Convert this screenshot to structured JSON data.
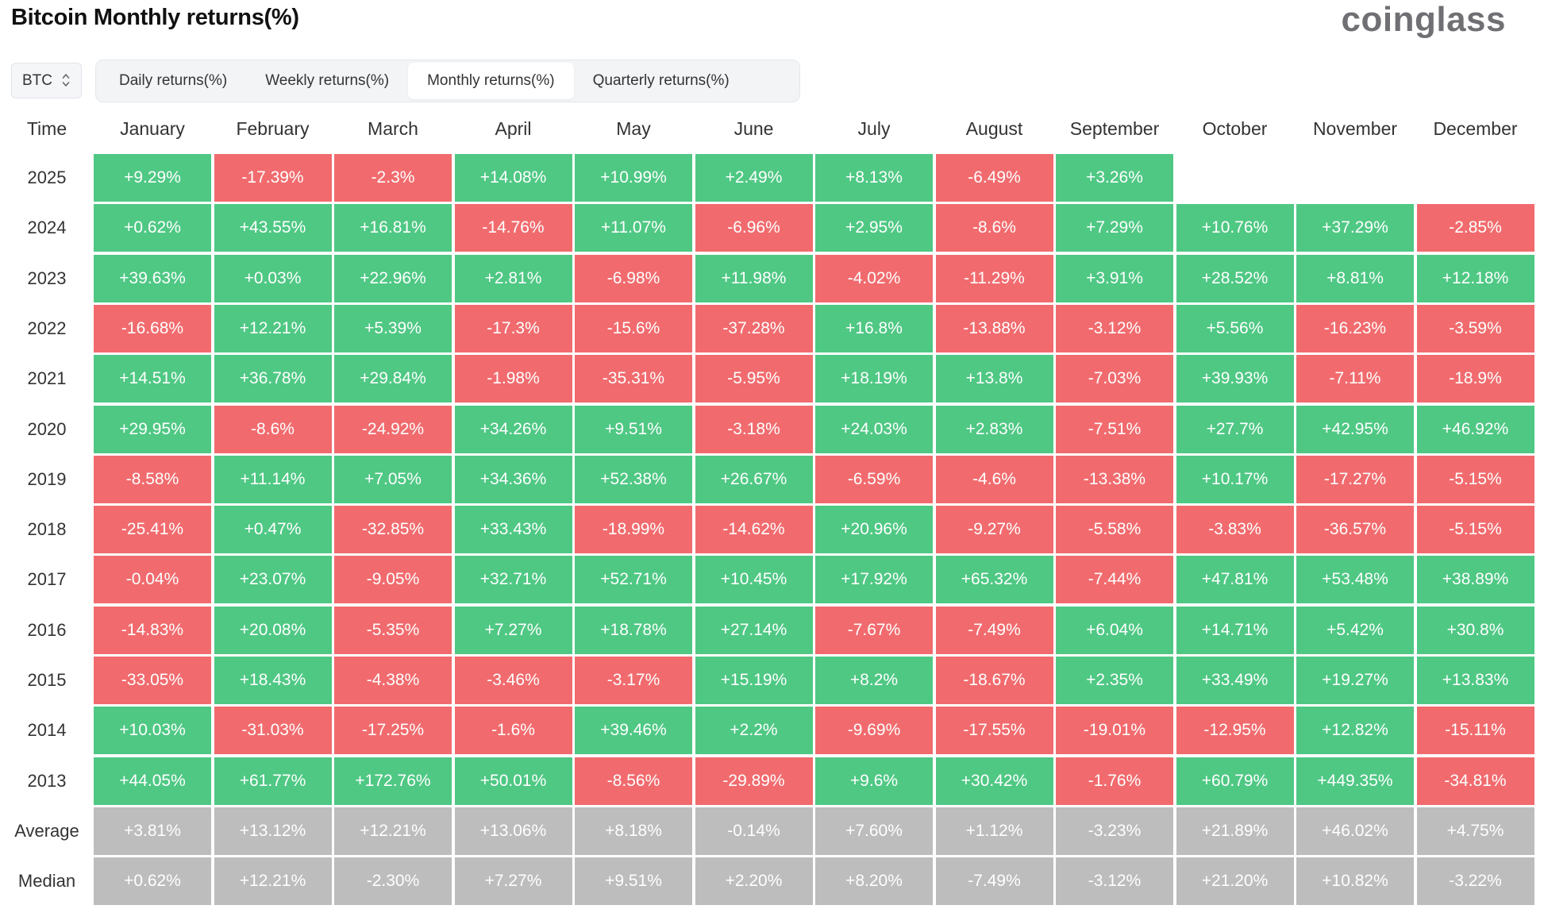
{
  "header": {
    "title": "Bitcoin Monthly returns(%)",
    "brand": "coinglass"
  },
  "controls": {
    "coin": "BTC",
    "tabs": [
      {
        "label": "Daily returns(%)"
      },
      {
        "label": "Weekly returns(%)"
      },
      {
        "label": "Monthly returns(%)"
      },
      {
        "label": "Quarterly returns(%)"
      }
    ],
    "active_tab": "Monthly returns(%)"
  },
  "colors": {
    "positive": "#4fc884",
    "negative": "#f16b6e",
    "summary": "#bdbdbd",
    "grid_line": "#ffffff"
  },
  "chart_data": {
    "type": "table",
    "title": "Bitcoin Monthly returns(%)",
    "row_header_label": "Time",
    "columns": [
      "January",
      "February",
      "March",
      "April",
      "May",
      "June",
      "July",
      "August",
      "September",
      "October",
      "November",
      "December"
    ],
    "rows": [
      {
        "label": "2025",
        "values": [
          "+9.29%",
          "-17.39%",
          "-2.3%",
          "+14.08%",
          "+10.99%",
          "+2.49%",
          "+8.13%",
          "-6.49%",
          "+3.26%",
          null,
          null,
          null
        ]
      },
      {
        "label": "2024",
        "values": [
          "+0.62%",
          "+43.55%",
          "+16.81%",
          "-14.76%",
          "+11.07%",
          "-6.96%",
          "+2.95%",
          "-8.6%",
          "+7.29%",
          "+10.76%",
          "+37.29%",
          "-2.85%"
        ]
      },
      {
        "label": "2023",
        "values": [
          "+39.63%",
          "+0.03%",
          "+22.96%",
          "+2.81%",
          "-6.98%",
          "+11.98%",
          "-4.02%",
          "-11.29%",
          "+3.91%",
          "+28.52%",
          "+8.81%",
          "+12.18%"
        ]
      },
      {
        "label": "2022",
        "values": [
          "-16.68%",
          "+12.21%",
          "+5.39%",
          "-17.3%",
          "-15.6%",
          "-37.28%",
          "+16.8%",
          "-13.88%",
          "-3.12%",
          "+5.56%",
          "-16.23%",
          "-3.59%"
        ]
      },
      {
        "label": "2021",
        "values": [
          "+14.51%",
          "+36.78%",
          "+29.84%",
          "-1.98%",
          "-35.31%",
          "-5.95%",
          "+18.19%",
          "+13.8%",
          "-7.03%",
          "+39.93%",
          "-7.11%",
          "-18.9%"
        ]
      },
      {
        "label": "2020",
        "values": [
          "+29.95%",
          "-8.6%",
          "-24.92%",
          "+34.26%",
          "+9.51%",
          "-3.18%",
          "+24.03%",
          "+2.83%",
          "-7.51%",
          "+27.7%",
          "+42.95%",
          "+46.92%"
        ]
      },
      {
        "label": "2019",
        "values": [
          "-8.58%",
          "+11.14%",
          "+7.05%",
          "+34.36%",
          "+52.38%",
          "+26.67%",
          "-6.59%",
          "-4.6%",
          "-13.38%",
          "+10.17%",
          "-17.27%",
          "-5.15%"
        ]
      },
      {
        "label": "2018",
        "values": [
          "-25.41%",
          "+0.47%",
          "-32.85%",
          "+33.43%",
          "-18.99%",
          "-14.62%",
          "+20.96%",
          "-9.27%",
          "-5.58%",
          "-3.83%",
          "-36.57%",
          "-5.15%"
        ]
      },
      {
        "label": "2017",
        "values": [
          "-0.04%",
          "+23.07%",
          "-9.05%",
          "+32.71%",
          "+52.71%",
          "+10.45%",
          "+17.92%",
          "+65.32%",
          "-7.44%",
          "+47.81%",
          "+53.48%",
          "+38.89%"
        ]
      },
      {
        "label": "2016",
        "values": [
          "-14.83%",
          "+20.08%",
          "-5.35%",
          "+7.27%",
          "+18.78%",
          "+27.14%",
          "-7.67%",
          "-7.49%",
          "+6.04%",
          "+14.71%",
          "+5.42%",
          "+30.8%"
        ]
      },
      {
        "label": "2015",
        "values": [
          "-33.05%",
          "+18.43%",
          "-4.38%",
          "-3.46%",
          "-3.17%",
          "+15.19%",
          "+8.2%",
          "-18.67%",
          "+2.35%",
          "+33.49%",
          "+19.27%",
          "+13.83%"
        ]
      },
      {
        "label": "2014",
        "values": [
          "+10.03%",
          "-31.03%",
          "-17.25%",
          "-1.6%",
          "+39.46%",
          "+2.2%",
          "-9.69%",
          "-17.55%",
          "-19.01%",
          "-12.95%",
          "+12.82%",
          "-15.11%"
        ]
      },
      {
        "label": "2013",
        "values": [
          "+44.05%",
          "+61.77%",
          "+172.76%",
          "+50.01%",
          "-8.56%",
          "-29.89%",
          "+9.6%",
          "+30.42%",
          "-1.76%",
          "+60.79%",
          "+449.35%",
          "-34.81%"
        ]
      }
    ],
    "summary_rows": [
      {
        "label": "Average",
        "values": [
          "+3.81%",
          "+13.12%",
          "+12.21%",
          "+13.06%",
          "+8.18%",
          "-0.14%",
          "+7.60%",
          "+1.12%",
          "-3.23%",
          "+21.89%",
          "+46.02%",
          "+4.75%"
        ]
      },
      {
        "label": "Median",
        "values": [
          "+0.62%",
          "+12.21%",
          "-2.30%",
          "+7.27%",
          "+9.51%",
          "+2.20%",
          "+8.20%",
          "-7.49%",
          "-3.12%",
          "+21.20%",
          "+10.82%",
          "-3.22%"
        ]
      }
    ]
  }
}
